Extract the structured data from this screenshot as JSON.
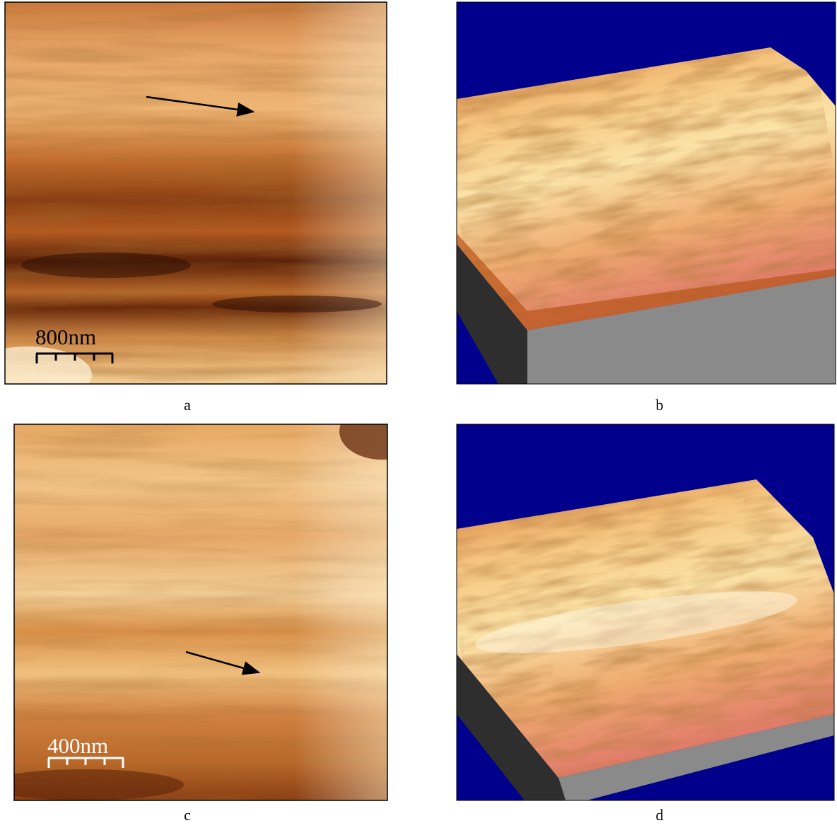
{
  "panels": [
    {
      "label": "a",
      "scale_bar": "800nm"
    },
    {
      "label": "b"
    },
    {
      "label": "c",
      "scale_bar": "400nm"
    },
    {
      "label": "d"
    }
  ]
}
